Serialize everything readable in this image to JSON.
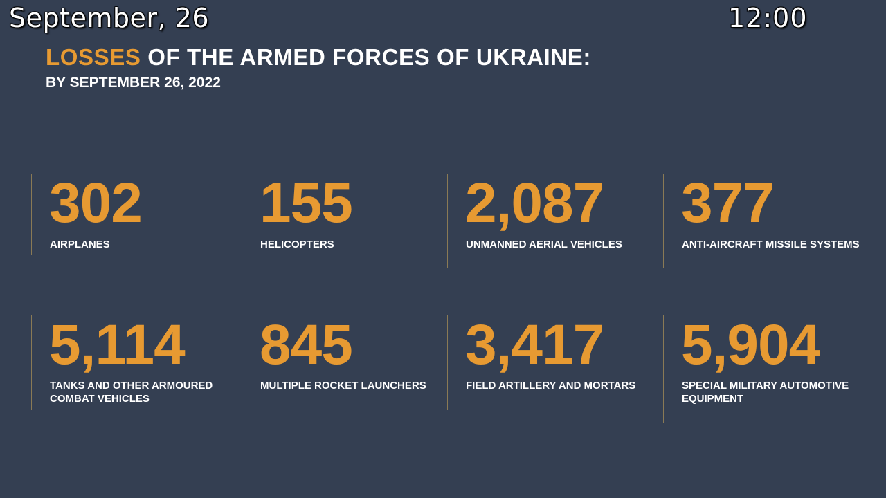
{
  "overlay": {
    "date": "September, 26",
    "time": "12:00"
  },
  "header": {
    "title_accent": "LOSSES",
    "title_rest": " OF THE ARMED FORCES OF UKRAINE:",
    "subtitle": "BY SEPTEMBER 26, 2022"
  },
  "stats": [
    {
      "value": "302",
      "label_line1": "AIRPLANES",
      "label_line2": ""
    },
    {
      "value": "155",
      "label_line1": "HELICOPTERS",
      "label_line2": ""
    },
    {
      "value": "2,087",
      "label_line1": "UNMANNED AERIAL VEHICLES",
      "label_line2": ""
    },
    {
      "value": "377",
      "label_line1": "ANTI-AIRCRAFT MISSILE SYSTEMS",
      "label_line2": ""
    },
    {
      "value": "5,114",
      "label_line1": "TANKS AND OTHER ARMOURED",
      "label_line2": "COMBAT VEHICLES"
    },
    {
      "value": "845",
      "label_line1": "MULTIPLE ROCKET LAUNCHERS",
      "label_line2": ""
    },
    {
      "value": "3,417",
      "label_line1": "FIELD ARTILLERY AND MORTARS",
      "label_line2": ""
    },
    {
      "value": "5,904",
      "label_line1": "SPECIAL MILITARY AUTOMOTIVE",
      "label_line2": "EQUIPMENT"
    }
  ],
  "colors": {
    "background": "#343f52",
    "accent": "#e79a32",
    "text": "#ffffff"
  }
}
